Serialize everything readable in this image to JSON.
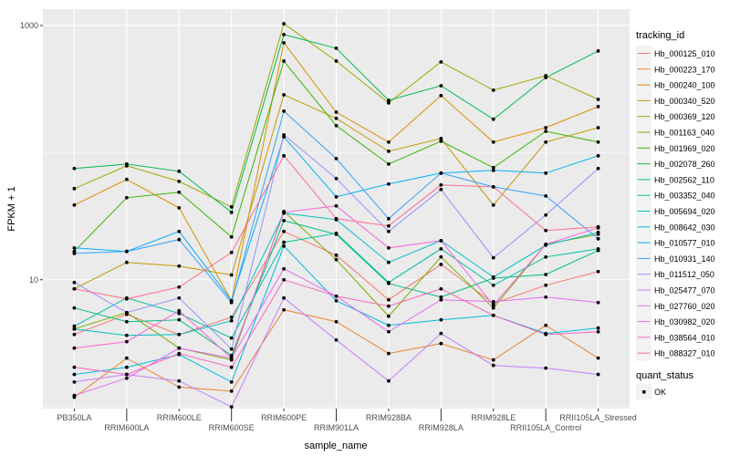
{
  "chart_data": {
    "type": "line",
    "xlabel": "sample_name",
    "ylabel": "FPKM + 1",
    "y_scale": "log10",
    "ylim": [
      0.97,
      1345
    ],
    "y_ticks": [
      {
        "value": 10,
        "label": "10"
      },
      {
        "value": 1000,
        "label": "1000"
      }
    ],
    "y_minor_gridlines": [
      1,
      100
    ],
    "grid": true,
    "background": "#EBEBEB",
    "categories": [
      "PB350LA",
      "RRIM600LA",
      "RRIM600LE",
      "RRIM600SE",
      "RRIM600PE",
      "RRIM901LA",
      "RRIM928BA",
      "RRIM928LA",
      "RRIM928LE",
      "RRII105LA_Control",
      "RRII105LA_Stressed"
    ],
    "legend": {
      "title": "tracking_id",
      "position": "right"
    },
    "point_legend": {
      "title": "quant_status",
      "items": [
        "OK"
      ],
      "color": "#000000"
    },
    "series": [
      {
        "name": "Hb_000125_010",
        "color": "#F8766D",
        "values": [
          3.71,
          5.34,
          3.71,
          5.08,
          24.0,
          15.6,
          6.96,
          13.2,
          6.51,
          9.05,
          11.6
        ]
      },
      {
        "name": "Hb_000223_170",
        "color": "#EA8331",
        "values": [
          1.19,
          2.42,
          1.43,
          1.33,
          5.8,
          4.68,
          2.63,
          3.15,
          2.34,
          4.38,
          2.42
        ]
      },
      {
        "name": "Hb_000240_100",
        "color": "#D89000",
        "values": [
          38.7,
          61.5,
          36.8,
          6.84,
          731,
          208,
          121,
          281,
          121,
          157,
          230
        ]
      },
      {
        "name": "Hb_000340_520",
        "color": "#C09B00",
        "values": [
          8.48,
          13.7,
          12.8,
          10.9,
          285,
          186,
          102.5,
          129,
          38.7,
          121,
          157
        ]
      },
      {
        "name": "Hb_000369_120",
        "color": "#A3A500",
        "values": [
          52.1,
          78.7,
          59.4,
          37.4,
          1033,
          525,
          246,
          517,
          310,
          403,
          262
        ]
      },
      {
        "name": "Hb_001163_040",
        "color": "#7CAE00",
        "values": [
          4.1,
          5.52,
          2.9,
          2.34,
          34.5,
          14.4,
          5.17,
          15.1,
          6.0,
          19.0,
          22.8
        ]
      },
      {
        "name": "Hb_001969_020",
        "color": "#39B600",
        "values": [
          16.7,
          44.2,
          48.8,
          21.7,
          525,
          163,
          81.3,
          123,
          76.2,
          147,
          121
        ]
      },
      {
        "name": "Hb_002078_260",
        "color": "#00BB4E",
        "values": [
          75,
          81.3,
          71.3,
          33.9,
          848,
          662,
          258,
          336,
          183,
          390,
          630
        ]
      },
      {
        "name": "Hb_002562_110",
        "color": "#00BF7D",
        "values": [
          6.0,
          4.68,
          4.84,
          2.54,
          29.2,
          22.8,
          9.36,
          7.31,
          10.3,
          11.0,
          17.0
        ]
      },
      {
        "name": "Hb_003352_040",
        "color": "#00C1A3",
        "values": [
          4.31,
          7.19,
          5.43,
          3.48,
          19.7,
          23.2,
          9.52,
          17.5,
          9.05,
          15.1,
          17.5
        ]
      },
      {
        "name": "Hb_005694_020",
        "color": "#00BFC4",
        "values": [
          4.1,
          3.65,
          3.71,
          4.76,
          33.4,
          29.7,
          13.7,
          20.3,
          10.5,
          18.7,
          23.6
        ]
      },
      {
        "name": "Hb_008642_030",
        "color": "#00BAE0",
        "values": [
          1.8,
          2.05,
          2.58,
          1.57,
          18.4,
          6.84,
          4.38,
          4.84,
          5.25,
          3.78,
          4.17
        ]
      },
      {
        "name": "Hb_010577_010",
        "color": "#00B0F6",
        "values": [
          17.8,
          16.7,
          24.0,
          6.84,
          133,
          44.9,
          56.6,
          69.0,
          72.5,
          69.0,
          94.4
        ]
      },
      {
        "name": "Hb_010931_140",
        "color": "#35A2FF",
        "values": [
          16.1,
          16.7,
          20.7,
          6.62,
          212,
          89.8,
          30.2,
          69.0,
          53.8,
          45.6,
          21.0
        ]
      },
      {
        "name": "Hb_011512_050",
        "color": "#9590FF",
        "values": [
          9.52,
          5.52,
          7.19,
          2.85,
          138,
          62.5,
          24.0,
          51.3,
          14.9,
          32.3,
          75
        ]
      },
      {
        "name": "Hb_025477_070",
        "color": "#C77CFF",
        "values": [
          1.57,
          1.8,
          1.6,
          1.0,
          7.19,
          3.36,
          1.6,
          3.78,
          2.12,
          2.02,
          1.8
        ]
      },
      {
        "name": "Hb_027760_020",
        "color": "#E76BF3",
        "values": [
          1.23,
          1.68,
          2.9,
          2.42,
          12.2,
          7.43,
          3.9,
          6.96,
          6.73,
          7.31,
          6.62
        ]
      },
      {
        "name": "Hb_030982_020",
        "color": "#FA62DB",
        "values": [
          2.9,
          3.26,
          5.71,
          2.42,
          33.9,
          38.1,
          17.8,
          20.3,
          6.3,
          19.0,
          25.6
        ]
      },
      {
        "name": "Hb_038564_010",
        "color": "#FF62BC",
        "values": [
          2.05,
          1.8,
          2.63,
          2.05,
          10.0,
          7.43,
          6.2,
          8.48,
          5.25,
          3.71,
          3.9
        ]
      },
      {
        "name": "Hb_088327_010",
        "color": "#FF6C91",
        "values": [
          8.48,
          7.07,
          8.76,
          16.4,
          94.4,
          30.2,
          26.5,
          55.7,
          53.8,
          24.4,
          26.1
        ]
      }
    ]
  }
}
